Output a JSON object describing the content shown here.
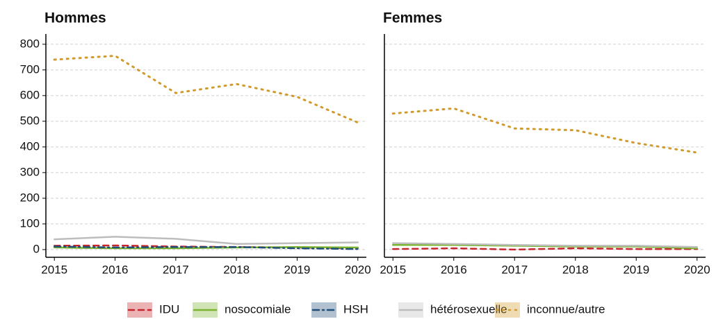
{
  "chart_data": [
    {
      "type": "line",
      "title": "Hommes",
      "legend": "bottom",
      "grid": true,
      "show_ytick_labels": true,
      "x": [
        2015,
        2016,
        2017,
        2018,
        2019,
        2020
      ],
      "xlim": [
        2014.86,
        2020.14
      ],
      "xticks": [
        2015,
        2016,
        2017,
        2018,
        2019,
        2020
      ],
      "ylim": [
        -30,
        840
      ],
      "yticks": [
        0,
        100,
        200,
        300,
        400,
        500,
        600,
        700,
        800
      ],
      "series": [
        {
          "name": "IDU",
          "color": "#c8242b",
          "linestyle": "dashed",
          "values": [
            15,
            16,
            12,
            10,
            8,
            5
          ]
        },
        {
          "name": "nosocomiale",
          "color": "#7ab32e",
          "linestyle": "solid",
          "values": [
            8,
            5,
            5,
            8,
            10,
            8
          ]
        },
        {
          "name": "HSH",
          "color": "#1f4e79",
          "linestyle": "dashdot",
          "values": [
            12,
            8,
            10,
            10,
            5,
            2
          ]
        },
        {
          "name": "hétérosexuelle",
          "color": "#bdbdbd",
          "linestyle": "solid",
          "values": [
            40,
            50,
            42,
            22,
            25,
            28
          ]
        },
        {
          "name": "inconnue/autre",
          "color": "#d09a2c",
          "linestyle": "dotted",
          "values": [
            740,
            755,
            610,
            645,
            595,
            495
          ]
        }
      ]
    },
    {
      "type": "line",
      "title": "Femmes",
      "grid": true,
      "show_ytick_labels": false,
      "x": [
        2015,
        2016,
        2017,
        2018,
        2019,
        2020
      ],
      "xlim": [
        2014.86,
        2020.14
      ],
      "xticks": [
        2015,
        2016,
        2017,
        2018,
        2019,
        2020
      ],
      "ylim": [
        -30,
        840
      ],
      "yticks": [
        0,
        100,
        200,
        300,
        400,
        500,
        600,
        700,
        800
      ],
      "series": [
        {
          "name": "IDU",
          "color": "#c8242b",
          "linestyle": "dashed",
          "values": [
            2,
            5,
            0,
            5,
            2,
            2
          ]
        },
        {
          "name": "nosocomiale",
          "color": "#7ab32e",
          "linestyle": "solid",
          "values": [
            18,
            18,
            15,
            12,
            12,
            5
          ]
        },
        {
          "name": "hétérosexuelle",
          "color": "#bdbdbd",
          "linestyle": "solid",
          "values": [
            25,
            22,
            18,
            15,
            15,
            10
          ]
        },
        {
          "name": "inconnue/autre",
          "color": "#d09a2c",
          "linestyle": "dotted",
          "values": [
            530,
            550,
            472,
            465,
            415,
            378
          ]
        }
      ]
    }
  ]
}
